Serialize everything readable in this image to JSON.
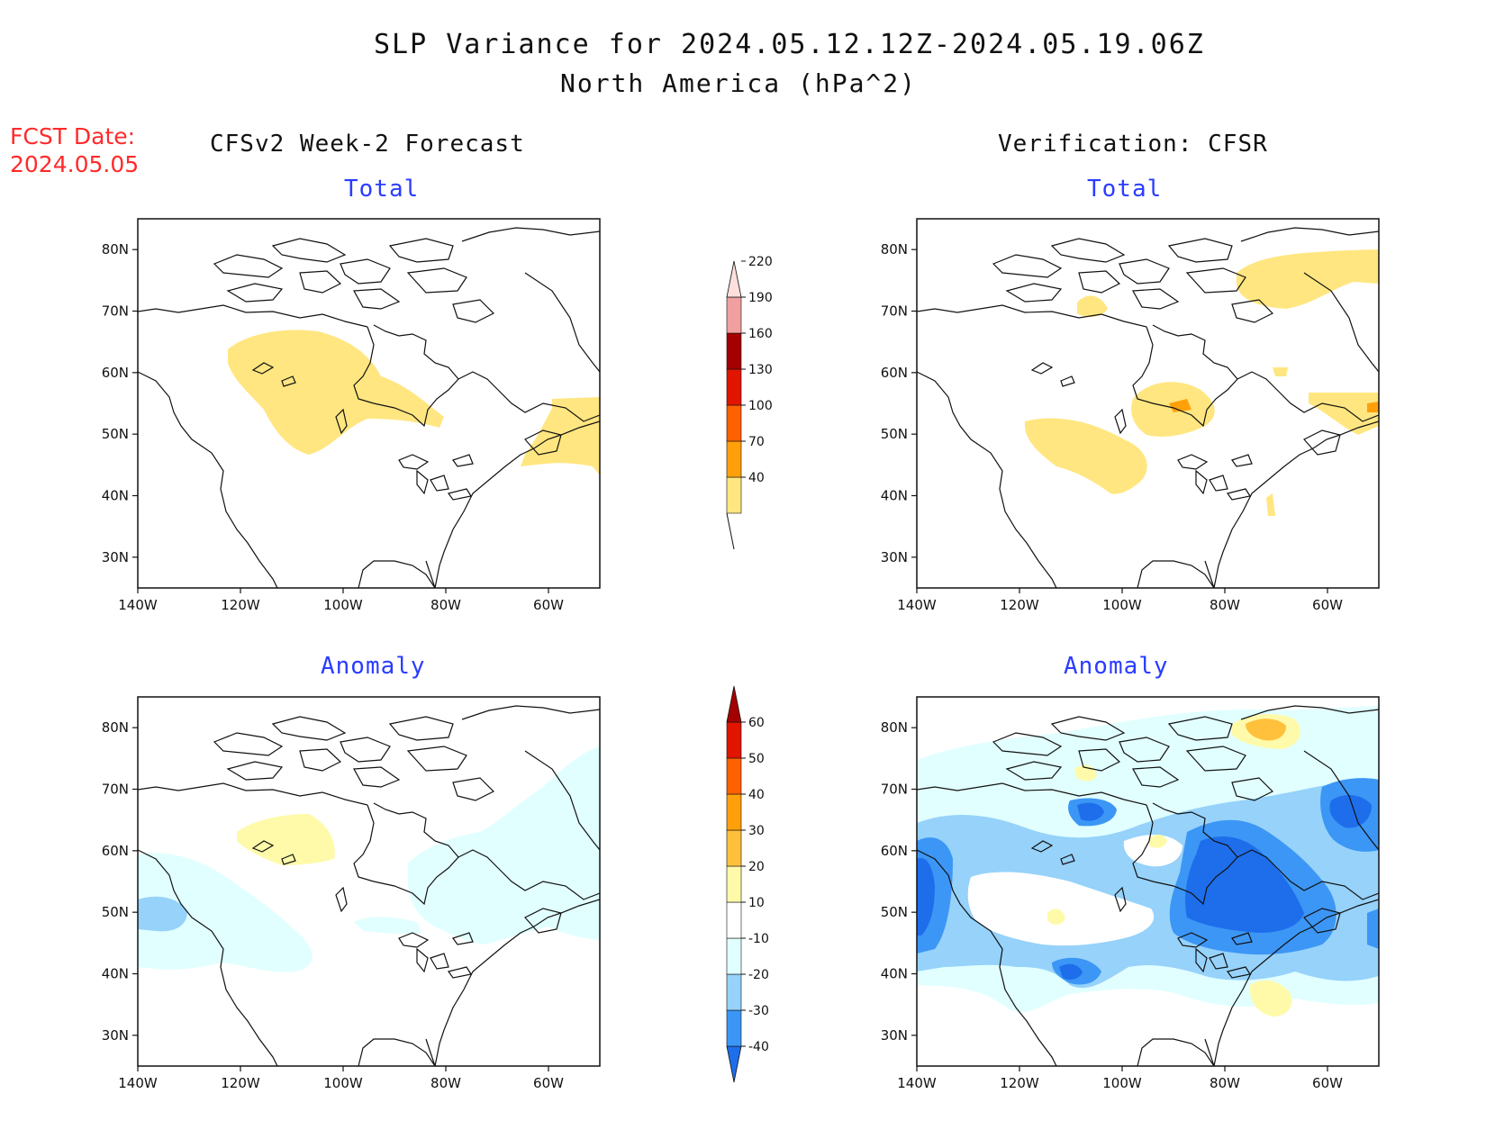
{
  "header": {
    "title": "SLP Variance for 2024.05.12.12Z-2024.05.19.06Z",
    "subtitle": "North America (hPa^2)",
    "fcst_line1": "FCST Date:",
    "fcst_line2": "2024.05.05"
  },
  "columns": {
    "left": "CFSv2 Week-2 Forecast",
    "right": "Verification: CFSR"
  },
  "panels": {
    "total_left": "Total",
    "total_right": "Total",
    "anom_left": "Anomaly",
    "anom_right": "Anomaly"
  },
  "axes": {
    "lat": [
      "80N",
      "70N",
      "60N",
      "50N",
      "40N",
      "30N"
    ],
    "lon": [
      "140W",
      "120W",
      "100W",
      "80W",
      "60W"
    ]
  },
  "colorbars": {
    "total": {
      "labels": [
        "40",
        "70",
        "100",
        "130",
        "160",
        "190",
        "220"
      ],
      "colors": [
        "#ffe680",
        "#ffa00a",
        "#ff6000",
        "#e11400",
        "#a50000",
        "#f0a0a0",
        "#fde0dc"
      ]
    },
    "anomaly": {
      "labels": [
        "-40",
        "-30",
        "-20",
        "-10",
        "10",
        "20",
        "30",
        "40",
        "50",
        "60"
      ],
      "colors": [
        "#1e6eeb",
        "#3c96f5",
        "#96d2fa",
        "#e1ffff",
        "#ffffff",
        "#fffaaa",
        "#ffc03c",
        "#ffa00a",
        "#ff6000",
        "#e11400",
        "#a50000"
      ]
    }
  },
  "colors": {
    "title_red": "#ff2a2a",
    "panel_blue": "#2a3cff"
  }
}
